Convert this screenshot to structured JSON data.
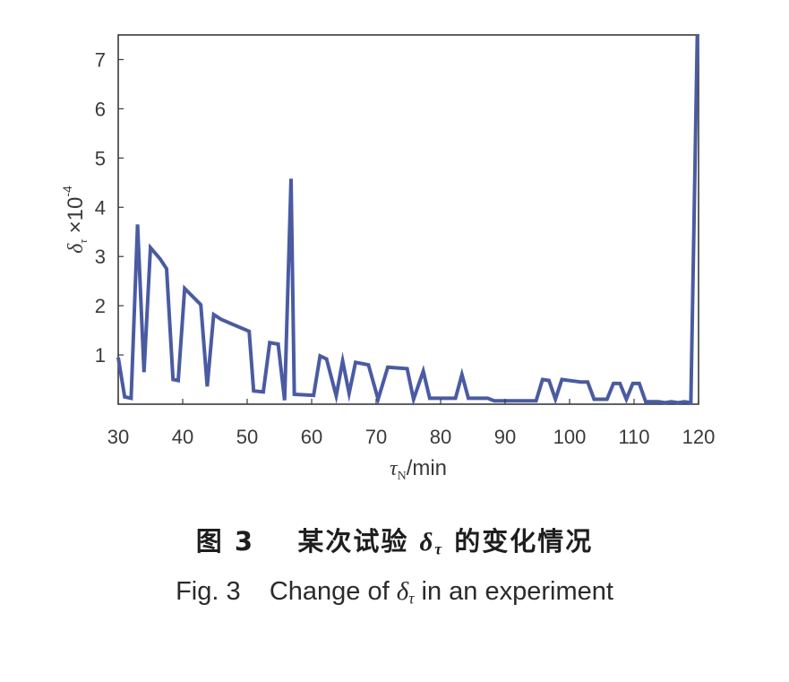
{
  "chart_data": {
    "type": "line",
    "xlabel": "τN/min",
    "xlabel_parts": {
      "symbol": "τ",
      "subscript": "N",
      "rest": "/min"
    },
    "ylabel_parts": {
      "symbol": "δ",
      "subscript": "τ",
      "rest": " ×10",
      "exponent": "-4"
    },
    "xlim": [
      30,
      120
    ],
    "ylim": [
      0,
      7.5
    ],
    "x_ticks": [
      30,
      40,
      50,
      60,
      70,
      80,
      90,
      100,
      110,
      120
    ],
    "y_ticks": [
      1,
      2,
      3,
      4,
      5,
      6,
      7
    ],
    "grid": false,
    "line_color": "#4a5ba2",
    "series": [
      {
        "x": [
          30,
          31,
          32,
          33,
          34,
          35,
          36.5,
          37.5,
          38.5,
          39.3,
          40.3,
          42.8,
          43.8,
          44.8,
          46,
          50.3,
          51,
          52.5,
          53.5,
          54.8,
          55.8,
          56.8,
          57.3,
          60.3,
          61.3,
          62.3,
          63.8,
          64.8,
          65.8,
          66.8,
          68.8,
          70.3,
          71.8,
          74.8,
          75.8,
          77.3,
          78.3,
          82.3,
          83.3,
          84.3,
          87.3,
          88.3,
          94.8,
          95.8,
          96.8,
          97.8,
          98.8,
          101.8,
          102.8,
          103.8,
          105.8,
          106.8,
          107.8,
          108.8,
          109.8,
          110.8,
          111.8,
          112.8,
          113.8,
          114.8,
          115.8,
          116.8,
          117.8,
          118.8,
          119.8
        ],
        "y": [
          0.95,
          0.15,
          0.12,
          3.65,
          0.65,
          3.18,
          2.95,
          2.75,
          0.5,
          0.48,
          2.35,
          2.02,
          0.36,
          1.82,
          1.72,
          1.48,
          0.27,
          0.25,
          1.25,
          1.22,
          0.08,
          4.58,
          0.2,
          0.18,
          0.98,
          0.92,
          0.17,
          0.88,
          0.22,
          0.85,
          0.8,
          0.1,
          0.75,
          0.72,
          0.1,
          0.67,
          0.12,
          0.12,
          0.6,
          0.12,
          0.12,
          0.07,
          0.07,
          0.5,
          0.48,
          0.1,
          0.5,
          0.45,
          0.45,
          0.1,
          0.1,
          0.42,
          0.42,
          0.1,
          0.42,
          0.42,
          0.05,
          0.05,
          0.05,
          0.03,
          0.05,
          0.03,
          0.05,
          0.03,
          7.5
        ]
      }
    ]
  },
  "caption": {
    "cn": "图 3　某次试验 δτ 的变化情况",
    "cn_parts": {
      "fig": "图 3",
      "before": "某次试验",
      "symbol": "δ",
      "subscript": "τ",
      "after": "的变化情况"
    },
    "en": "Fig. 3　Change of δτ in an experiment",
    "en_parts": {
      "fig": "Fig. 3",
      "before": "Change of",
      "symbol": "δ",
      "subscript": "τ",
      "after": "in an experiment"
    }
  }
}
